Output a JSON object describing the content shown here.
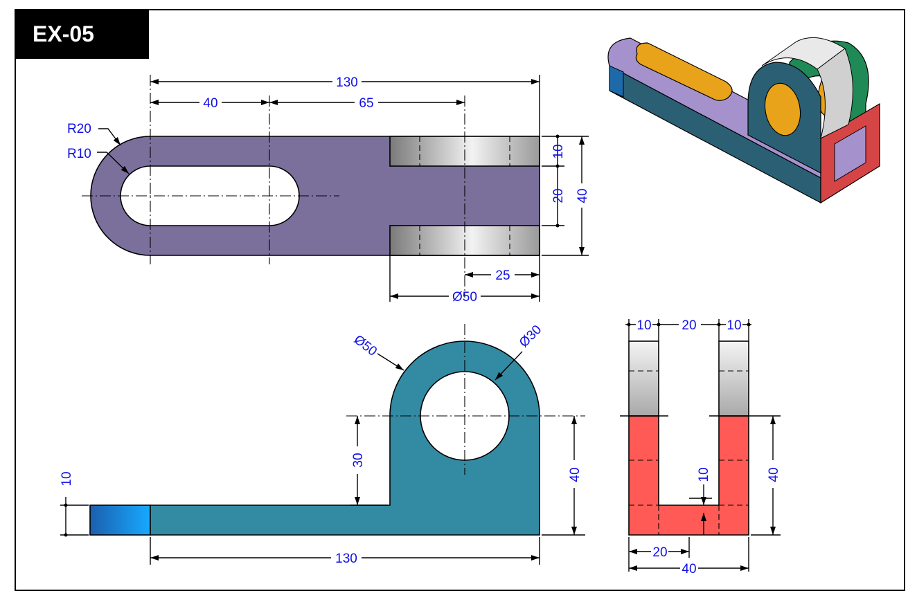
{
  "title": "EX-05",
  "colors": {
    "top_view": "#7b6f9c",
    "front_view": "#338aa3",
    "side_view": "#ff5a55",
    "dimension_text": "#1010e6",
    "stub": "#1e90ff"
  },
  "top_view": {
    "dims": {
      "overall_length": "130",
      "slot_center": "40",
      "hole_offset": "65",
      "outer_radius": "R20",
      "slot_radius": "R10",
      "lug_thickness": "10",
      "gap": "20",
      "overall_width": "40",
      "half_diameter": "25",
      "lug_diameter": "Ø50"
    }
  },
  "front_view": {
    "dims": {
      "outer_diameter": "Ø50",
      "hole_diameter": "Ø30",
      "base_thickness": "10",
      "hole_height_above_base": "30",
      "hole_height": "40",
      "overall_length": "130"
    }
  },
  "side_view": {
    "dims": {
      "left_lug": "10",
      "gap": "20",
      "right_lug": "10",
      "base_thickness": "10",
      "height": "40",
      "half_width": "20",
      "width": "40"
    }
  }
}
